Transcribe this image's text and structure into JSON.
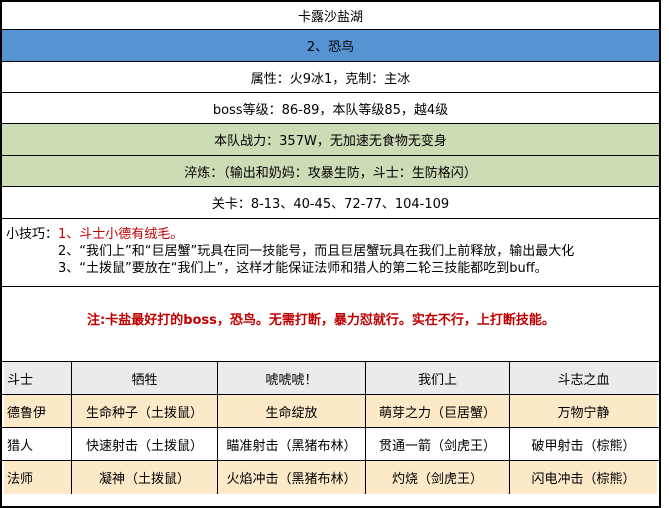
{
  "colors": {
    "boss_row_blue": "#5593D2",
    "team_rows_green": "#CCDDB5",
    "highlight_yellow": "#FBE9C7",
    "table_header_gray": "#EBEBEB",
    "warning_red": "#C00000",
    "grid_border": "#000000"
  },
  "info_rows": {
    "map_title": "卡露沙盐湖",
    "boss_name": "2、恐鸟",
    "attribute": "属性：火9冰1，克制：主冰",
    "boss_level": "boss等级：86-89，本队等级85，越4级",
    "team_power": "本队战力：357W，无加速无食物无变身",
    "quench": "淬炼：（输出和奶妈：攻暴生防，斗士：生防格闪）",
    "stages": "关卡：8-13、40-45、72-77、104-109"
  },
  "tips": {
    "label": "小技巧：",
    "line1": "1、斗士小德有绒毛。",
    "line2": "2、“我们上”和“巨居蟹”玩具在同一技能号，而且巨居蟹玩具在我们上前释放，输出最大化",
    "line3": "3、“土拨鼠”要放在“我们上”，这样才能保证法师和猎人的第二轮三技能都吃到buff。"
  },
  "note": "注:卡盐最好打的boss，恐鸟。无需打断，暴力怼就行。实在不行，上打断技能。",
  "skill_table": {
    "headers": [
      "斗士",
      "牺牲",
      "唬唬唬！",
      "我们上",
      "斗志之血"
    ],
    "rows": [
      {
        "cells": [
          "德鲁伊",
          "生命种子（土拨鼠）",
          "生命绽放",
          "萌芽之力（巨居蟹）",
          "万物宁静"
        ]
      },
      {
        "cells": [
          "猎人",
          "快速射击（土拨鼠）",
          "瞄准射击（黑猪布林）",
          "贯通一箭（剑虎王）",
          "破甲射击（棕熊）"
        ]
      },
      {
        "cells": [
          "法师",
          "凝神（土拨鼠）",
          "火焰冲击（黑猪布林）",
          "灼烧（剑虎王）",
          "闪电冲击（棕熊）"
        ]
      }
    ]
  }
}
